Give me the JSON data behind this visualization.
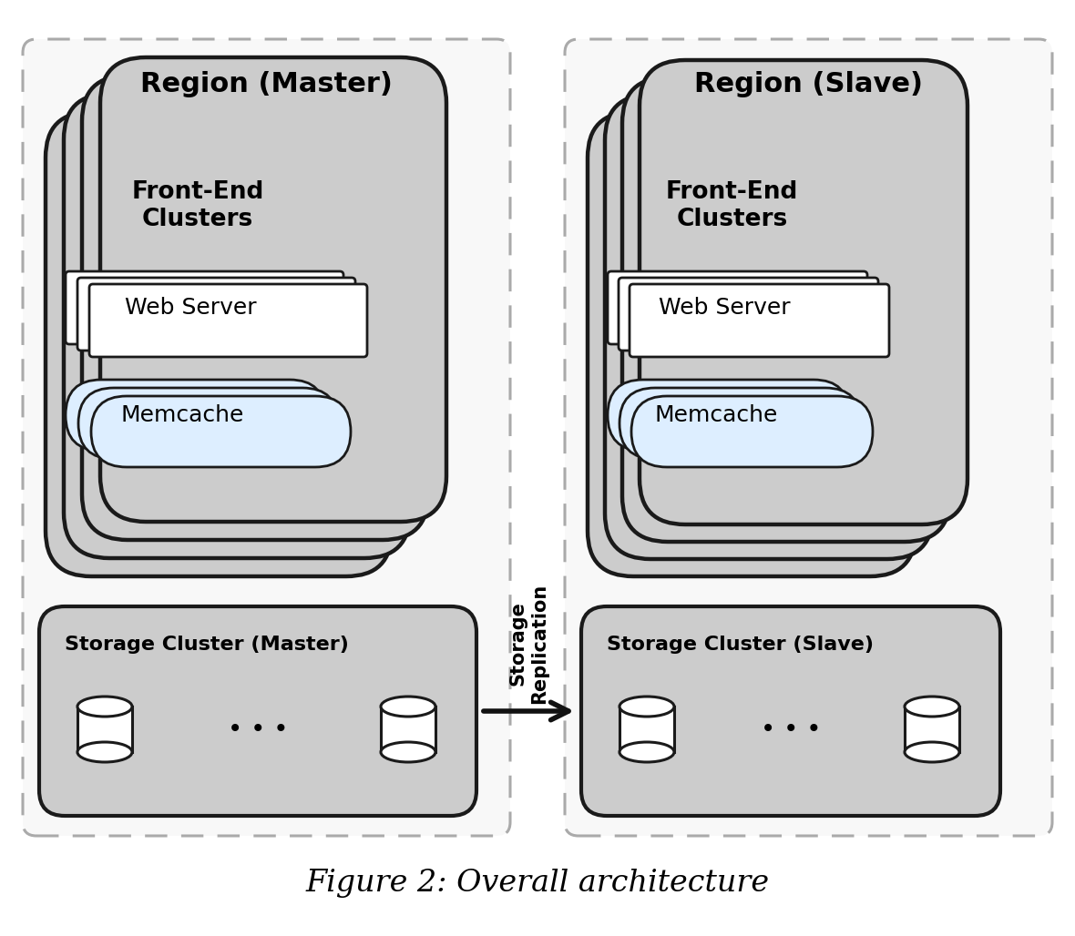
{
  "title": "Figure 2: Overall architecture",
  "region_master_label": "Region (Master)",
  "region_slave_label": "Region (Slave)",
  "frontend_label": "Front-End\nClusters",
  "webserver_label": "Web Server",
  "memcache_label": "Memcache",
  "storage_master_label": "Storage Cluster (Master)",
  "storage_slave_label": "Storage Cluster (Slave)",
  "replication_label": "Storage\nReplication",
  "bg_color": "#ffffff",
  "region_border_color": "#aaaaaa",
  "fe_cluster_color": "#cccccc",
  "fe_cluster_border": "#1a1a1a",
  "webserver_color": "#ffffff",
  "webserver_border": "#1a1a1a",
  "memcache_color": "#ddeeff",
  "memcache_border": "#1a1a1a",
  "storage_color": "#cccccc",
  "storage_border": "#1a1a1a",
  "arrow_color": "#111111",
  "title_fontsize": 24,
  "region_label_fontsize": 22,
  "fe_label_fontsize": 19,
  "component_fontsize": 18,
  "storage_label_fontsize": 16,
  "replication_fontsize": 15
}
